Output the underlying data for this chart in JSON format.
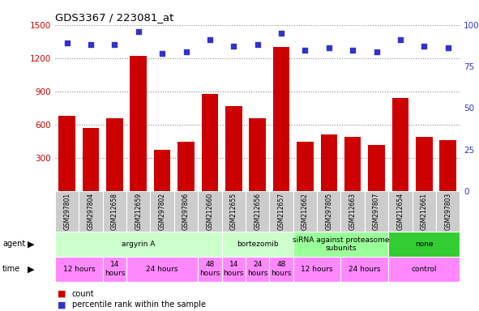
{
  "title": "GDS3367 / 223081_at",
  "samples": [
    "GSM297801",
    "GSM297804",
    "GSM212658",
    "GSM212659",
    "GSM297802",
    "GSM297806",
    "GSM212660",
    "GSM212655",
    "GSM212656",
    "GSM212657",
    "GSM212662",
    "GSM297805",
    "GSM212663",
    "GSM297807",
    "GSM212654",
    "GSM212661",
    "GSM297803"
  ],
  "counts": [
    680,
    570,
    660,
    1220,
    370,
    450,
    880,
    770,
    660,
    1300,
    450,
    510,
    490,
    420,
    840,
    490,
    460
  ],
  "percentiles": [
    89,
    88,
    88,
    96,
    83,
    84,
    91,
    87,
    88,
    95,
    85,
    86,
    85,
    84,
    91,
    87,
    86
  ],
  "ylim_left": [
    0,
    1500
  ],
  "yticks_left": [
    300,
    600,
    900,
    1200,
    1500
  ],
  "ylim_right": [
    0,
    100
  ],
  "yticks_right": [
    0,
    25,
    50,
    75,
    100
  ],
  "bar_color": "#cc0000",
  "dot_color": "#3333cc",
  "grid_color": "#888888",
  "agent_groups": [
    {
      "label": "argyrin A",
      "start": 0,
      "end": 7,
      "color": "#ccffcc"
    },
    {
      "label": "bortezomib",
      "start": 7,
      "end": 10,
      "color": "#ccffcc"
    },
    {
      "label": "siRNA against proteasome\nsubunits",
      "start": 10,
      "end": 14,
      "color": "#99ff99"
    },
    {
      "label": "none",
      "start": 14,
      "end": 17,
      "color": "#33cc33"
    }
  ],
  "time_groups": [
    {
      "label": "12 hours",
      "start": 0,
      "end": 2
    },
    {
      "label": "14\nhours",
      "start": 2,
      "end": 3
    },
    {
      "label": "24 hours",
      "start": 3,
      "end": 6
    },
    {
      "label": "48\nhours",
      "start": 6,
      "end": 7
    },
    {
      "label": "14\nhours",
      "start": 7,
      "end": 8
    },
    {
      "label": "24\nhours",
      "start": 8,
      "end": 9
    },
    {
      "label": "48\nhours",
      "start": 9,
      "end": 10
    },
    {
      "label": "12 hours",
      "start": 10,
      "end": 12
    },
    {
      "label": "24 hours",
      "start": 12,
      "end": 14
    },
    {
      "label": "control",
      "start": 14,
      "end": 17
    }
  ],
  "left_axis_color": "#cc0000",
  "right_axis_color": "#3333cc",
  "background_color": "#ffffff",
  "sample_bg_color": "#cccccc",
  "time_color": "#ff88ff",
  "agent_colors": [
    "#ccffcc",
    "#ccffcc",
    "#99ff99",
    "#33cc33"
  ]
}
